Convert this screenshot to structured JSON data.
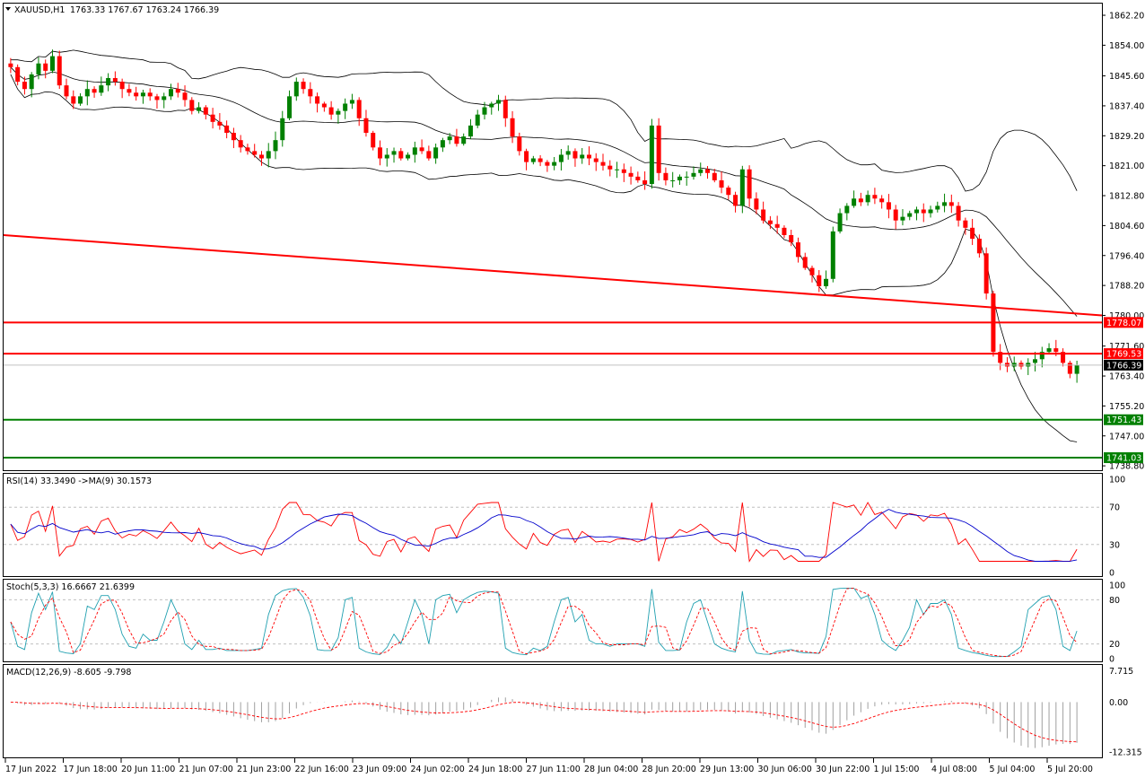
{
  "header": {
    "symbol": "XAUUSD,H1",
    "ohlc": "1763.33 1767.67 1763.24 1766.39"
  },
  "chart_data": {
    "type": "candlestick",
    "symbol": "XAUUSD",
    "timeframe": "H1",
    "price_axis": {
      "ticks": [
        "1862.20",
        "1854.00",
        "1845.60",
        "1837.40",
        "1829.20",
        "1821.00",
        "1812.80",
        "1804.60",
        "1796.40",
        "1788.20",
        "1780.00",
        "1771.60",
        "1763.40",
        "1755.20",
        "1747.00",
        "1738.80"
      ],
      "range": [
        1737.6,
        1865.4
      ]
    },
    "time_axis_labels": [
      "17 Jun 2022",
      "17 Jun 18:00",
      "20 Jun 11:00",
      "21 Jun 07:00",
      "21 Jun 23:00",
      "22 Jun 16:00",
      "23 Jun 09:00",
      "24 Jun 02:00",
      "24 Jun 18:00",
      "27 Jun 11:00",
      "28 Jun 04:00",
      "28 Jun 20:00",
      "29 Jun 13:00",
      "30 Jun 06:00",
      "30 Jun 22:00",
      "1 Jul 15:00",
      "4 Jul 08:00",
      "5 Jul 04:00",
      "5 Jul 20:00"
    ],
    "levels": [
      {
        "label": "1778.07",
        "value": 1778.07,
        "color": "#ff0000"
      },
      {
        "label": "1769.53",
        "value": 1769.53,
        "color": "#ff0000"
      },
      {
        "label": "1766.39",
        "value": 1766.39,
        "color": "#000000"
      },
      {
        "label": "1751.43",
        "value": 1751.43,
        "color": "#008000"
      },
      {
        "label": "1741.03",
        "value": 1741.03,
        "color": "#008000"
      }
    ],
    "trendline": {
      "from": 1802.0,
      "to": 1780.0,
      "color": "#ff0000"
    },
    "bull_color": "#008000",
    "bear_color": "#ff0000",
    "closes": [
      1848,
      1844,
      1842,
      1846,
      1849,
      1847,
      1851,
      1843,
      1840,
      1838,
      1840,
      1842,
      1841,
      1843,
      1845,
      1844,
      1842,
      1841,
      1840,
      1841,
      1840,
      1839,
      1840,
      1842,
      1841,
      1839,
      1836,
      1837,
      1835,
      1833,
      1832,
      1830,
      1828,
      1826,
      1825,
      1824,
      1823,
      1825,
      1828,
      1834,
      1840,
      1844,
      1842,
      1840,
      1838,
      1837,
      1835,
      1836,
      1838,
      1839,
      1834,
      1830,
      1826,
      1823,
      1824,
      1825,
      1823,
      1824,
      1826,
      1825,
      1823,
      1826,
      1828,
      1829,
      1827,
      1829,
      1832,
      1835,
      1837,
      1838,
      1839,
      1834,
      1829,
      1825,
      1822,
      1823,
      1822,
      1821,
      1822,
      1824,
      1825,
      1823,
      1824,
      1823,
      1822,
      1821,
      1820,
      1820,
      1819,
      1818,
      1817,
      1816,
      1832,
      1819,
      1817,
      1817,
      1818,
      1818,
      1819,
      1820,
      1819,
      1817,
      1815,
      1813,
      1810,
      1820,
      1812,
      1809,
      1806,
      1805,
      1804,
      1802,
      1800,
      1796,
      1793,
      1791,
      1788,
      1790,
      1803,
      1808,
      1810,
      1812,
      1811,
      1813,
      1812,
      1811,
      1809,
      1806,
      1807,
      1808,
      1809,
      1808,
      1809,
      1810,
      1811,
      1810,
      1806,
      1804,
      1801,
      1797,
      1786,
      1770,
      1767,
      1766,
      1767,
      1766,
      1767,
      1768,
      1770,
      1771,
      1770,
      1767,
      1764,
      1766.39
    ],
    "rsi": {
      "label": "RSI(14) 33.3490 ->MA(9) 30.1573",
      "levels": [
        30,
        70
      ],
      "ticks": [
        "100",
        "70",
        "30",
        "0"
      ],
      "range": [
        0,
        100
      ]
    },
    "stoch": {
      "label": "Stoch(5,3,3) 16.6667 21.6399",
      "levels": [
        20,
        80
      ],
      "ticks": [
        "100",
        "80",
        "20",
        "0"
      ],
      "range": [
        0,
        100
      ]
    },
    "macd": {
      "label": "MACD(12,26,9) -8.605 -9.798",
      "ticks": [
        "7.715",
        "0.00",
        "-12.315"
      ],
      "range": [
        -13.4,
        8.5
      ]
    }
  }
}
